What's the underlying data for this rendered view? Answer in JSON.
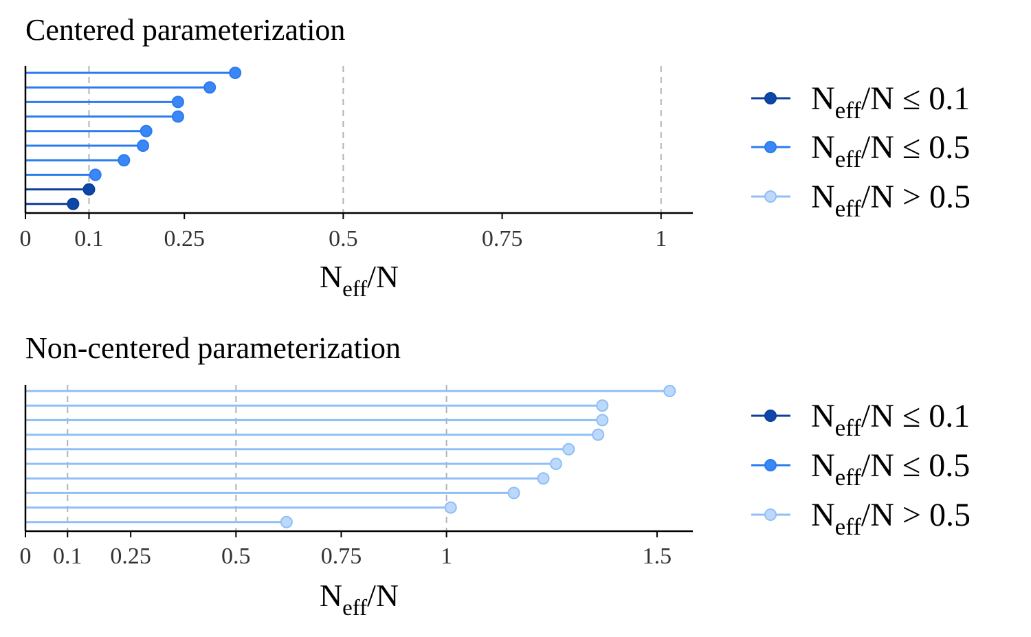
{
  "colors": {
    "low": "#0b3f9a",
    "mid": "#2a7bf0",
    "high": "#8fbff5",
    "grid": "#b3b3b3"
  },
  "legend_entries": [
    {
      "key": "low",
      "main": "N",
      "sub": "eff",
      "rest": "/N ≤ 0.1"
    },
    {
      "key": "mid",
      "main": "N",
      "sub": "eff",
      "rest": "/N ≤ 0.5"
    },
    {
      "key": "high",
      "main": "N",
      "sub": "eff",
      "rest": "/N > 0.5"
    }
  ],
  "chart_data": [
    {
      "type": "lollipop",
      "title": "Centered parameterization",
      "xlabel": {
        "main": "N",
        "sub": "eff",
        "rest": "/N"
      },
      "xlim": [
        0,
        1.05
      ],
      "ticks": [
        0,
        0.1,
        0.25,
        0.5,
        0.75,
        1
      ],
      "tick_labels": [
        "0",
        "0.1",
        "0.25",
        "0.5",
        "0.75",
        "1"
      ],
      "grid_lines": [
        0.1,
        0.5,
        1
      ],
      "legend_position": "right",
      "values": [
        0.33,
        0.29,
        0.24,
        0.24,
        0.19,
        0.185,
        0.155,
        0.11,
        0.1,
        0.075
      ]
    },
    {
      "type": "lollipop",
      "title": "Non-centered parameterization",
      "xlabel": {
        "main": "N",
        "sub": "eff",
        "rest": "/N"
      },
      "xlim": [
        0,
        1.585
      ],
      "ticks": [
        0,
        0.1,
        0.25,
        0.5,
        0.75,
        1,
        1.5
      ],
      "tick_labels": [
        "0",
        "0.1",
        "0.25",
        "0.5",
        "0.75",
        "1",
        "1.5"
      ],
      "grid_lines": [
        0.1,
        0.5,
        1
      ],
      "legend_position": "right",
      "values": [
        1.53,
        1.37,
        1.37,
        1.36,
        1.29,
        1.26,
        1.23,
        1.16,
        1.01,
        0.62
      ]
    }
  ]
}
